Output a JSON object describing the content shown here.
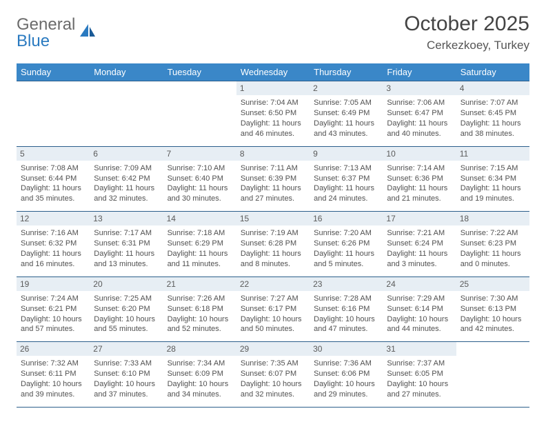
{
  "logo": {
    "text1": "General",
    "text2": "Blue"
  },
  "title": "October 2025",
  "location": "Cerkezkoey, Turkey",
  "day_headers": [
    "Sunday",
    "Monday",
    "Tuesday",
    "Wednesday",
    "Thursday",
    "Friday",
    "Saturday"
  ],
  "colors": {
    "header_bg": "#3a87c8",
    "daynum_bg": "#e7eef4",
    "border": "#2a5d8a",
    "logo_blue": "#2a7ac0"
  },
  "weeks": [
    [
      {
        "n": "",
        "sr": "",
        "ss": "",
        "d1": "",
        "d2": ""
      },
      {
        "n": "",
        "sr": "",
        "ss": "",
        "d1": "",
        "d2": ""
      },
      {
        "n": "",
        "sr": "",
        "ss": "",
        "d1": "",
        "d2": ""
      },
      {
        "n": "1",
        "sr": "Sunrise: 7:04 AM",
        "ss": "Sunset: 6:50 PM",
        "d1": "Daylight: 11 hours",
        "d2": "and 46 minutes."
      },
      {
        "n": "2",
        "sr": "Sunrise: 7:05 AM",
        "ss": "Sunset: 6:49 PM",
        "d1": "Daylight: 11 hours",
        "d2": "and 43 minutes."
      },
      {
        "n": "3",
        "sr": "Sunrise: 7:06 AM",
        "ss": "Sunset: 6:47 PM",
        "d1": "Daylight: 11 hours",
        "d2": "and 40 minutes."
      },
      {
        "n": "4",
        "sr": "Sunrise: 7:07 AM",
        "ss": "Sunset: 6:45 PM",
        "d1": "Daylight: 11 hours",
        "d2": "and 38 minutes."
      }
    ],
    [
      {
        "n": "5",
        "sr": "Sunrise: 7:08 AM",
        "ss": "Sunset: 6:44 PM",
        "d1": "Daylight: 11 hours",
        "d2": "and 35 minutes."
      },
      {
        "n": "6",
        "sr": "Sunrise: 7:09 AM",
        "ss": "Sunset: 6:42 PM",
        "d1": "Daylight: 11 hours",
        "d2": "and 32 minutes."
      },
      {
        "n": "7",
        "sr": "Sunrise: 7:10 AM",
        "ss": "Sunset: 6:40 PM",
        "d1": "Daylight: 11 hours",
        "d2": "and 30 minutes."
      },
      {
        "n": "8",
        "sr": "Sunrise: 7:11 AM",
        "ss": "Sunset: 6:39 PM",
        "d1": "Daylight: 11 hours",
        "d2": "and 27 minutes."
      },
      {
        "n": "9",
        "sr": "Sunrise: 7:13 AM",
        "ss": "Sunset: 6:37 PM",
        "d1": "Daylight: 11 hours",
        "d2": "and 24 minutes."
      },
      {
        "n": "10",
        "sr": "Sunrise: 7:14 AM",
        "ss": "Sunset: 6:36 PM",
        "d1": "Daylight: 11 hours",
        "d2": "and 21 minutes."
      },
      {
        "n": "11",
        "sr": "Sunrise: 7:15 AM",
        "ss": "Sunset: 6:34 PM",
        "d1": "Daylight: 11 hours",
        "d2": "and 19 minutes."
      }
    ],
    [
      {
        "n": "12",
        "sr": "Sunrise: 7:16 AM",
        "ss": "Sunset: 6:32 PM",
        "d1": "Daylight: 11 hours",
        "d2": "and 16 minutes."
      },
      {
        "n": "13",
        "sr": "Sunrise: 7:17 AM",
        "ss": "Sunset: 6:31 PM",
        "d1": "Daylight: 11 hours",
        "d2": "and 13 minutes."
      },
      {
        "n": "14",
        "sr": "Sunrise: 7:18 AM",
        "ss": "Sunset: 6:29 PM",
        "d1": "Daylight: 11 hours",
        "d2": "and 11 minutes."
      },
      {
        "n": "15",
        "sr": "Sunrise: 7:19 AM",
        "ss": "Sunset: 6:28 PM",
        "d1": "Daylight: 11 hours",
        "d2": "and 8 minutes."
      },
      {
        "n": "16",
        "sr": "Sunrise: 7:20 AM",
        "ss": "Sunset: 6:26 PM",
        "d1": "Daylight: 11 hours",
        "d2": "and 5 minutes."
      },
      {
        "n": "17",
        "sr": "Sunrise: 7:21 AM",
        "ss": "Sunset: 6:24 PM",
        "d1": "Daylight: 11 hours",
        "d2": "and 3 minutes."
      },
      {
        "n": "18",
        "sr": "Sunrise: 7:22 AM",
        "ss": "Sunset: 6:23 PM",
        "d1": "Daylight: 11 hours",
        "d2": "and 0 minutes."
      }
    ],
    [
      {
        "n": "19",
        "sr": "Sunrise: 7:24 AM",
        "ss": "Sunset: 6:21 PM",
        "d1": "Daylight: 10 hours",
        "d2": "and 57 minutes."
      },
      {
        "n": "20",
        "sr": "Sunrise: 7:25 AM",
        "ss": "Sunset: 6:20 PM",
        "d1": "Daylight: 10 hours",
        "d2": "and 55 minutes."
      },
      {
        "n": "21",
        "sr": "Sunrise: 7:26 AM",
        "ss": "Sunset: 6:18 PM",
        "d1": "Daylight: 10 hours",
        "d2": "and 52 minutes."
      },
      {
        "n": "22",
        "sr": "Sunrise: 7:27 AM",
        "ss": "Sunset: 6:17 PM",
        "d1": "Daylight: 10 hours",
        "d2": "and 50 minutes."
      },
      {
        "n": "23",
        "sr": "Sunrise: 7:28 AM",
        "ss": "Sunset: 6:16 PM",
        "d1": "Daylight: 10 hours",
        "d2": "and 47 minutes."
      },
      {
        "n": "24",
        "sr": "Sunrise: 7:29 AM",
        "ss": "Sunset: 6:14 PM",
        "d1": "Daylight: 10 hours",
        "d2": "and 44 minutes."
      },
      {
        "n": "25",
        "sr": "Sunrise: 7:30 AM",
        "ss": "Sunset: 6:13 PM",
        "d1": "Daylight: 10 hours",
        "d2": "and 42 minutes."
      }
    ],
    [
      {
        "n": "26",
        "sr": "Sunrise: 7:32 AM",
        "ss": "Sunset: 6:11 PM",
        "d1": "Daylight: 10 hours",
        "d2": "and 39 minutes."
      },
      {
        "n": "27",
        "sr": "Sunrise: 7:33 AM",
        "ss": "Sunset: 6:10 PM",
        "d1": "Daylight: 10 hours",
        "d2": "and 37 minutes."
      },
      {
        "n": "28",
        "sr": "Sunrise: 7:34 AM",
        "ss": "Sunset: 6:09 PM",
        "d1": "Daylight: 10 hours",
        "d2": "and 34 minutes."
      },
      {
        "n": "29",
        "sr": "Sunrise: 7:35 AM",
        "ss": "Sunset: 6:07 PM",
        "d1": "Daylight: 10 hours",
        "d2": "and 32 minutes."
      },
      {
        "n": "30",
        "sr": "Sunrise: 7:36 AM",
        "ss": "Sunset: 6:06 PM",
        "d1": "Daylight: 10 hours",
        "d2": "and 29 minutes."
      },
      {
        "n": "31",
        "sr": "Sunrise: 7:37 AM",
        "ss": "Sunset: 6:05 PM",
        "d1": "Daylight: 10 hours",
        "d2": "and 27 minutes."
      },
      {
        "n": "",
        "sr": "",
        "ss": "",
        "d1": "",
        "d2": ""
      }
    ]
  ]
}
